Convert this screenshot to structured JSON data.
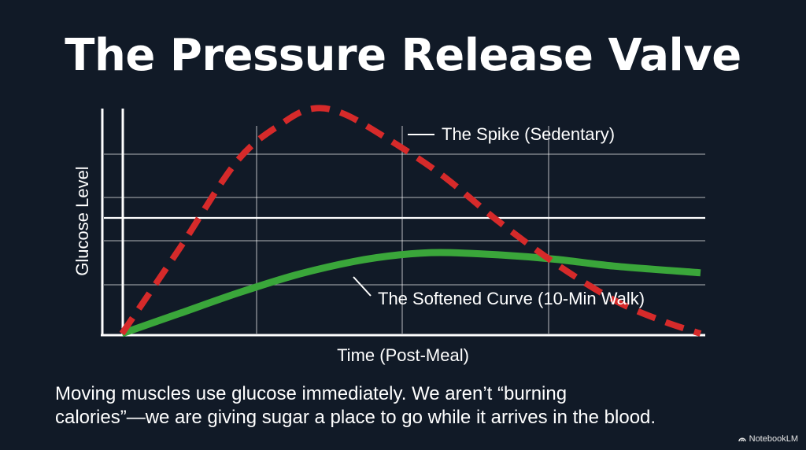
{
  "title": "The Pressure Release Valve",
  "caption": {
    "line1": "Moving muscles use glucose immediately. We aren’t “burning",
    "line2": "calories”—we are giving sugar a place to go while it arrives in the blood."
  },
  "brand": "NotebookLM",
  "colors": {
    "background": "#111a27",
    "spike": "#d62a2a",
    "softened": "#3aa63a",
    "grid": "#ffffff"
  },
  "chart_data": {
    "type": "line",
    "xlabel": "Time (Post-Meal)",
    "ylabel": "Glucose Level",
    "xlim": [
      0,
      100
    ],
    "ylim": [
      0,
      100
    ],
    "grid": true,
    "series": [
      {
        "name": "The Spike (Sedentary)",
        "style": "dashed",
        "color": "#d62a2a",
        "x": [
          0,
          10,
          20,
          28,
          33,
          38,
          45,
          55,
          65,
          75,
          85,
          93,
          100
        ],
        "y": [
          0,
          38,
          77,
          94,
          100,
          98,
          88,
          71,
          50,
          31,
          15,
          6,
          0
        ]
      },
      {
        "name": "The Softened Curve (10-Min Walk)",
        "style": "solid",
        "color": "#3aa63a",
        "x": [
          0,
          10,
          20,
          30,
          40,
          48,
          55,
          65,
          75,
          85,
          100
        ],
        "y": [
          0,
          9,
          18,
          26,
          32,
          35,
          36,
          35,
          33,
          30,
          27
        ]
      }
    ]
  }
}
